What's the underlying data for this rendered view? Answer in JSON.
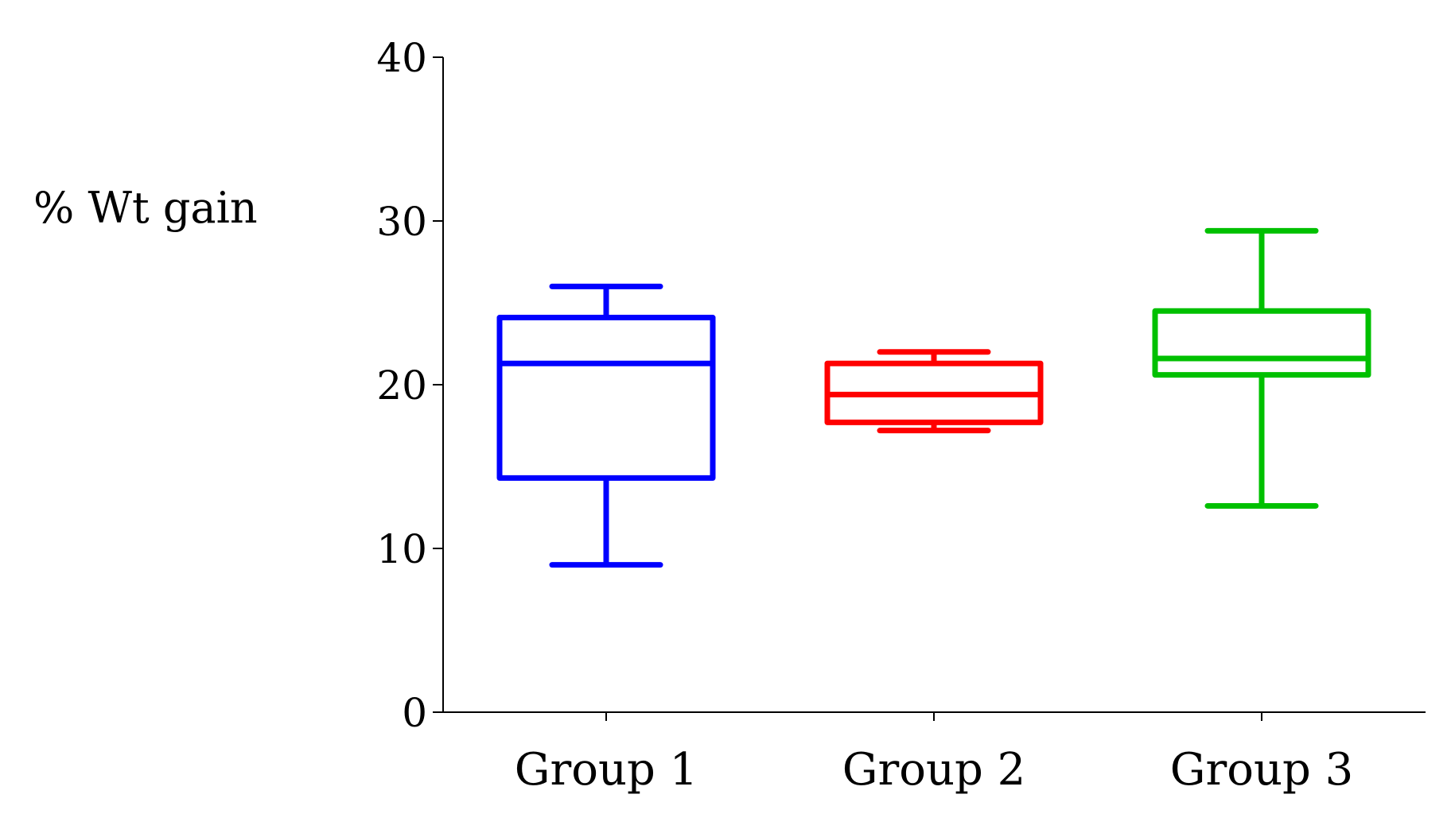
{
  "chart_data": {
    "type": "box",
    "title": "",
    "xlabel": "",
    "ylabel": "% Wt gain",
    "ylim": [
      0,
      40
    ],
    "yticks": [
      0,
      10,
      20,
      30,
      40
    ],
    "grid": false,
    "legend": "none",
    "categories": [
      "Group 1",
      "Group 2",
      "Group 3"
    ],
    "boxes": [
      {
        "category": "Group 1",
        "min": 9,
        "q1": 14.3,
        "median": 21.3,
        "q3": 24.1,
        "max": 26,
        "color": "#0000ff"
      },
      {
        "category": "Group 2",
        "min": 17.2,
        "q1": 17.7,
        "median": 19.4,
        "q3": 21.3,
        "max": 22,
        "color": "#ff0000"
      },
      {
        "category": "Group 3",
        "min": 12.6,
        "q1": 20.6,
        "median": 21.6,
        "q3": 24.5,
        "max": 29.4,
        "color": "#00c000"
      }
    ]
  }
}
